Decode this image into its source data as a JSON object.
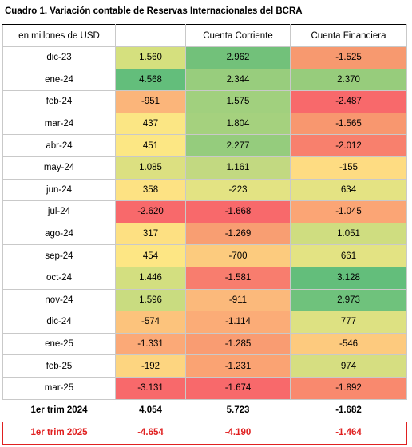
{
  "title": "Cuadro 1. Variación contable de Reservas Internacionales del BCRA",
  "header": {
    "unit": "en millones de USD",
    "col1": "",
    "col2": "Cuenta Corriente",
    "col3": "Cuenta Financiera"
  },
  "rows": [
    {
      "label": "dic-23",
      "values": [
        "1.560",
        "2.962",
        "-1.525"
      ],
      "colors": [
        "#d5e07e",
        "#72c17a",
        "#f7996f"
      ]
    },
    {
      "label": "ene-24",
      "values": [
        "4.568",
        "2.344",
        "2.370"
      ],
      "colors": [
        "#63be7b",
        "#98cd7d",
        "#97cc7c"
      ]
    },
    {
      "label": "feb-24",
      "values": [
        "-951",
        "1.575",
        "-2.487"
      ],
      "colors": [
        "#fbb57a",
        "#a1d07e",
        "#f8696b"
      ]
    },
    {
      "label": "mar-24",
      "values": [
        "437",
        "1.804",
        "-1.565"
      ],
      "colors": [
        "#fbe684",
        "#a5d17e",
        "#f8976f"
      ]
    },
    {
      "label": "abr-24",
      "values": [
        "451",
        "2.277",
        "-2.012"
      ],
      "colors": [
        "#fce784",
        "#95cc7d",
        "#f8806d"
      ]
    },
    {
      "label": "may-24",
      "values": [
        "1.085",
        "1.161",
        "-155"
      ],
      "colors": [
        "#dce081",
        "#c2d981",
        "#fedc82"
      ]
    },
    {
      "label": "jun-24",
      "values": [
        "358",
        "-223",
        "634"
      ],
      "colors": [
        "#fde283",
        "#e3e383",
        "#e4e383"
      ]
    },
    {
      "label": "jul-24",
      "values": [
        "-2.620",
        "-1.668",
        "-1.045"
      ],
      "colors": [
        "#f8696b",
        "#f8696b",
        "#fba575"
      ]
    },
    {
      "label": "ago-24",
      "values": [
        "317",
        "-1.269",
        "1.051"
      ],
      "colors": [
        "#fde082",
        "#f89e72",
        "#cfdd80"
      ]
    },
    {
      "label": "sep-24",
      "values": [
        "454",
        "-700",
        "661"
      ],
      "colors": [
        "#fde684",
        "#fccb7e",
        "#e3e383"
      ]
    },
    {
      "label": "oct-24",
      "values": [
        "1.446",
        "-1.581",
        "3.128"
      ],
      "colors": [
        "#d3df80",
        "#f87d6e",
        "#63be7b"
      ]
    },
    {
      "label": "nov-24",
      "values": [
        "1.596",
        "-911",
        "2.973"
      ],
      "colors": [
        "#c9dc80",
        "#fbb97b",
        "#6fc27c"
      ]
    },
    {
      "label": "dic-24",
      "values": [
        "-574",
        "-1.114",
        "777"
      ],
      "colors": [
        "#fcc37c",
        "#fbac77",
        "#dde182"
      ]
    },
    {
      "label": "ene-25",
      "values": [
        "-1.331",
        "-1.285",
        "-546"
      ],
      "colors": [
        "#fba977",
        "#f99c72",
        "#fdca7e"
      ]
    },
    {
      "label": "feb-25",
      "values": [
        "-192",
        "-1.231",
        "974"
      ],
      "colors": [
        "#fdd580",
        "#faa373",
        "#d6de81"
      ]
    },
    {
      "label": "mar-25",
      "values": [
        "-3.131",
        "-1.674",
        "-1.892"
      ],
      "colors": [
        "#f8696b",
        "#f8696b",
        "#f9896e"
      ]
    }
  ],
  "totals": [
    {
      "label": "1er trim 2024",
      "values": [
        "4.054",
        "5.723",
        "-1.682"
      ]
    },
    {
      "label": "1er trim 2025",
      "values": [
        "-4.654",
        "-4.190",
        "-1.464"
      ]
    }
  ]
}
